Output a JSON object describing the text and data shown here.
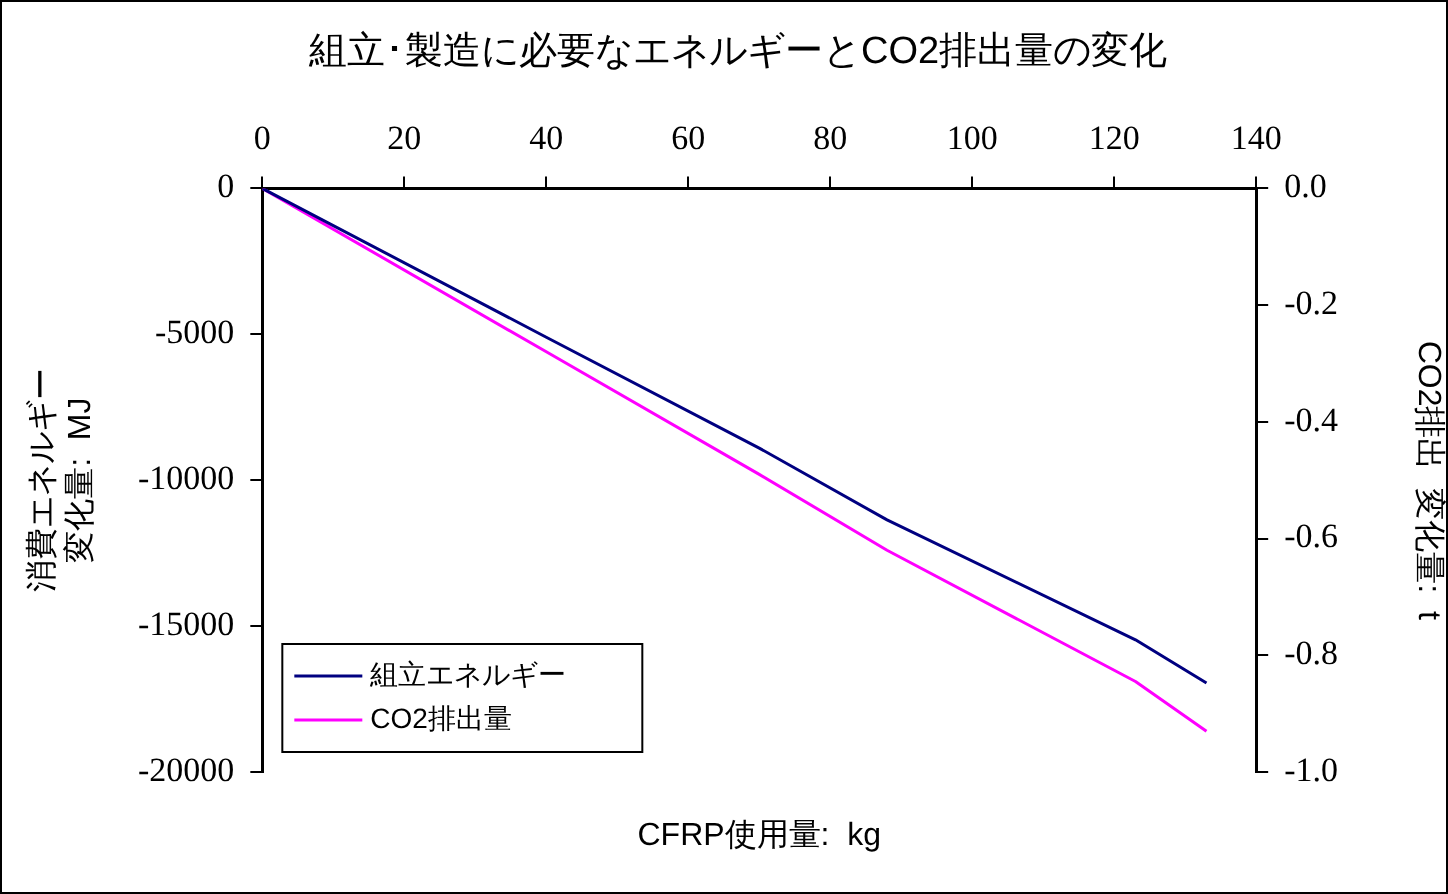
{
  "chart_data": {
    "type": "line",
    "title": "組立･製造に必要なエネルギーとCO2排出量の変化",
    "xlabel": "CFRP使用量:  kg",
    "ylabel": "消費エネルギー変化量:  MJ",
    "y2label": "CO2排出  変化量:  t",
    "xlim": [
      0,
      140
    ],
    "xticks": [
      0,
      20,
      40,
      60,
      80,
      100,
      120,
      140
    ],
    "ylim": [
      -20000,
      0
    ],
    "yticks": [
      -20000,
      -15000,
      -10000,
      -5000,
      0
    ],
    "y2lim": [
      -1.0,
      0.0
    ],
    "y2ticks": [
      {
        "value": -1.0,
        "label": "-1.0"
      },
      {
        "value": -0.8,
        "label": "-0.8"
      },
      {
        "value": -0.6,
        "label": "-0.6"
      },
      {
        "value": -0.4,
        "label": "-0.4"
      },
      {
        "value": -0.2,
        "label": "-0.2"
      },
      {
        "value": 0,
        "label": "0.0"
      }
    ],
    "series": [
      {
        "name": "組立エネルギー",
        "color": "#000080",
        "axis": "y",
        "x": [
          0,
          40,
          70,
          88,
          123,
          133
        ],
        "values": [
          0,
          -5100,
          -8900,
          -11360,
          -15470,
          -16950
        ]
      },
      {
        "name": "CO2排出量",
        "color": "#ff00ff",
        "axis": "y2",
        "x": [
          0,
          40,
          70,
          88,
          123,
          133
        ],
        "values": [
          0,
          -0.28,
          -0.49,
          -0.62,
          -0.845,
          -0.93
        ]
      }
    ],
    "grid": false,
    "legend": "bottom left",
    "marker": "none",
    "line_style": "solid"
  }
}
